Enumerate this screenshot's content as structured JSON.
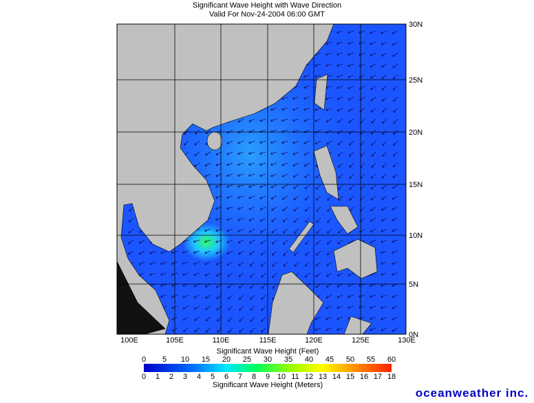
{
  "header": {
    "title": "Significant Wave Height with Wave Direction",
    "subtitle": "Valid For Nov-24-2004 06:00 GMT"
  },
  "map": {
    "lon_labels": [
      "100E",
      "105E",
      "110E",
      "115E",
      "120E",
      "125E",
      "130E"
    ],
    "lat_labels": [
      "30N",
      "25N",
      "20N",
      "15N",
      "10N",
      "5N",
      "0N"
    ]
  },
  "colorbar": {
    "feet_label": "Significant Wave Height (Feet)",
    "feet_ticks": [
      0,
      5,
      10,
      15,
      20,
      25,
      30,
      35,
      40,
      45,
      50,
      55,
      60
    ],
    "meters_ticks": [
      0,
      1,
      2,
      3,
      4,
      5,
      6,
      7,
      8,
      9,
      10,
      11,
      12,
      13,
      14,
      15,
      16,
      17,
      18
    ],
    "meters_label": "Significant Wave Height (Meters)"
  },
  "logo": "oceanweather inc."
}
